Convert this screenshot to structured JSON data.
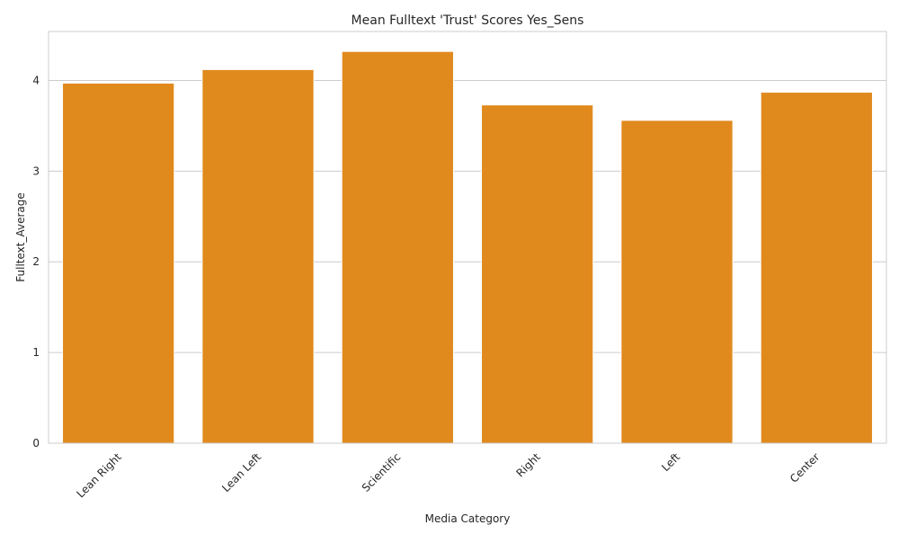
{
  "chart_data": {
    "type": "bar",
    "title": "Mean Fulltext 'Trust' Scores Yes_Sens",
    "xlabel": "Media Category",
    "ylabel": "Fulltext_Average",
    "categories": [
      "Lean Right",
      "Lean Left",
      "Scientific",
      "Right",
      "Left",
      "Center"
    ],
    "values": [
      3.97,
      4.12,
      4.32,
      3.73,
      3.56,
      3.87
    ],
    "ylim": [
      0,
      4.54
    ],
    "yticks": [
      0,
      1,
      2,
      3,
      4
    ],
    "grid": "horizontal",
    "bar_color": "#e08a1e",
    "grid_color": "#cccccc",
    "spine_color": "#cccccc"
  }
}
